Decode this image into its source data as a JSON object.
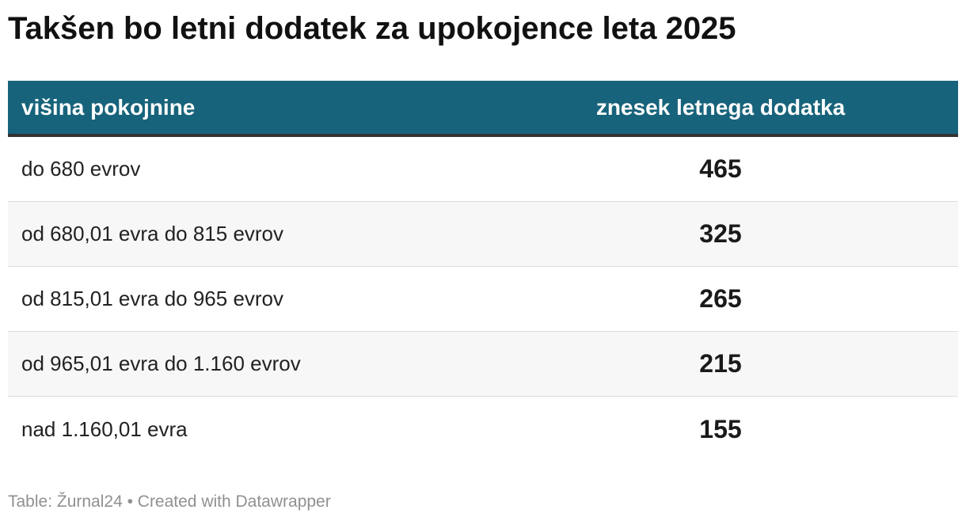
{
  "title": "Takšen bo letni dodatek za upokojence leta 2025",
  "chart_data": {
    "type": "table",
    "columns": [
      "višina pokojnine",
      "znesek letnega dodatka"
    ],
    "rows": [
      {
        "label": "do 680 evrov",
        "value": "465"
      },
      {
        "label": "od 680,01 evra do 815 evrov",
        "value": "325"
      },
      {
        "label": "od 815,01 evra do 965 evrov",
        "value": "265"
      },
      {
        "label": "od 965,01 evra do 1.160 evrov",
        "value": "215"
      },
      {
        "label": "nad 1.160,01 evra",
        "value": "155"
      }
    ]
  },
  "footer": "Table: Žurnal24 • Created with Datawrapper",
  "colors": {
    "header_background": "#17637b",
    "header_text": "#ffffff",
    "header_rule": "#333333",
    "row_alt": "#f7f7f7",
    "footer_text": "#909090"
  }
}
